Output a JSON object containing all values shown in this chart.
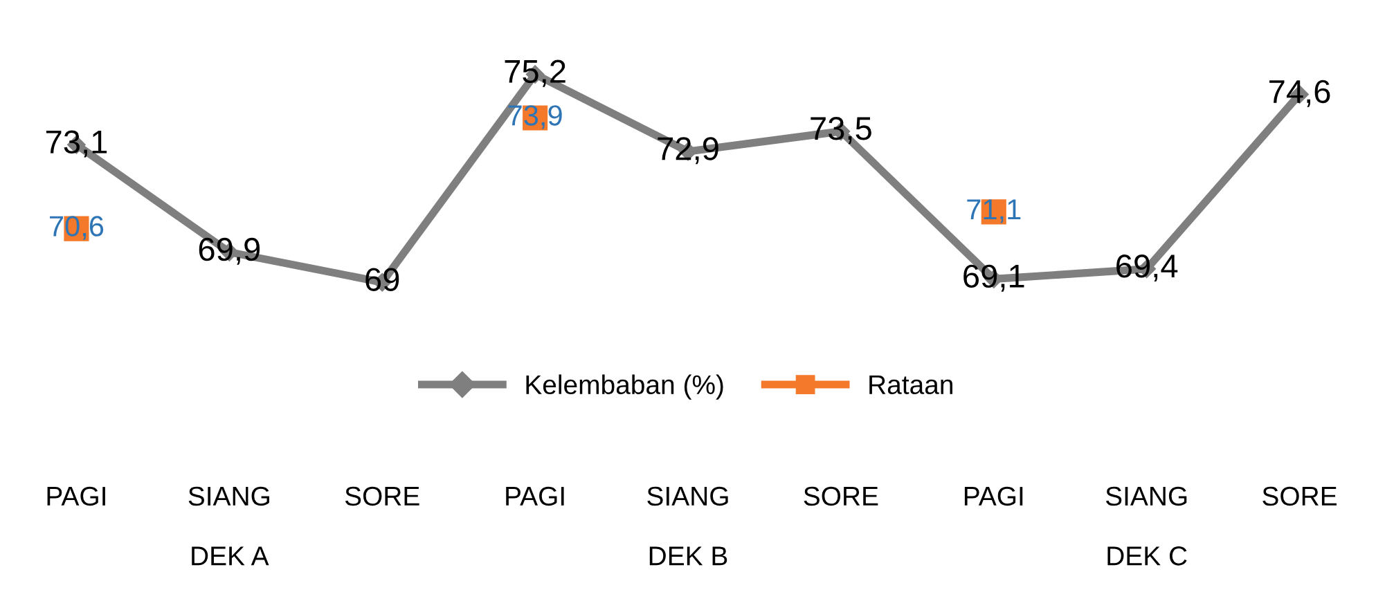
{
  "chart_data": {
    "type": "line",
    "categories": [
      "PAGI",
      "SIANG",
      "SORE",
      "PAGI",
      "SIANG",
      "SORE",
      "PAGI",
      "SIANG",
      "SORE"
    ],
    "annotations": [
      "DEK A",
      "DEK B",
      "DEK C"
    ],
    "series": [
      {
        "name": "Kelembaban (%)",
        "color": "#7f7f7f",
        "marker": "diamond",
        "line_style": "solid",
        "values": [
          73.1,
          69.9,
          69,
          75.2,
          72.9,
          73.5,
          69.1,
          69.4,
          74.6
        ],
        "value_labels": [
          "73,1",
          "69,9",
          "69",
          "75,2",
          "72,9",
          "73,5",
          "69,1",
          "69,4",
          "74,6"
        ]
      },
      {
        "name": "Rataan",
        "type": "scatter",
        "color": "#f4792a",
        "marker": "square",
        "values": [
          70.6,
          null,
          null,
          73.9,
          null,
          null,
          71.1,
          null,
          null
        ],
        "value_labels": [
          "70,6",
          null,
          null,
          "73,9",
          null,
          null,
          "71,1",
          null,
          null
        ]
      }
    ],
    "legend": "bottom",
    "grid": false
  }
}
